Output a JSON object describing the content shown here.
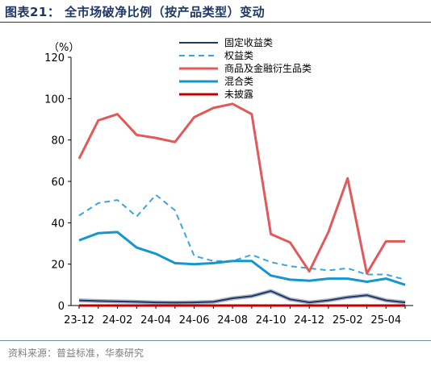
{
  "figure": {
    "title": "图表21： 全市场破净比例（按产品类型）变动",
    "source": "资料来源：普益标准，华泰研究"
  },
  "chart_data": {
    "type": "line",
    "ylabel": "（%）",
    "ylim": [
      0,
      120
    ],
    "yticks": [
      0,
      20,
      40,
      60,
      80,
      100,
      120
    ],
    "categories": [
      "23-12",
      "24-01",
      "24-02",
      "24-03",
      "24-04",
      "24-05",
      "24-06",
      "24-07",
      "24-08",
      "24-09",
      "24-10",
      "24-11",
      "24-12",
      "25-01",
      "25-02",
      "25-03",
      "25-04",
      "25-05"
    ],
    "xtick_labels": [
      "23-12",
      "24-02",
      "24-04",
      "24-06",
      "24-08",
      "24-10",
      "24-12",
      "25-02",
      "25-04"
    ],
    "legend_position": "top-right",
    "grid": false,
    "series": [
      {
        "name": "固定收益类",
        "color": "#1f3864",
        "style": "solid",
        "width": 2,
        "values": [
          2.5,
          2.2,
          2,
          1.8,
          1.5,
          1.4,
          1.5,
          1.8,
          3.5,
          4.5,
          7,
          3,
          1.5,
          2.5,
          4,
          5,
          2.5,
          1.5
        ]
      },
      {
        "name": "权益类",
        "color": "#3aa6dd",
        "style": "dashed",
        "width": 2,
        "values": [
          43.5,
          49.5,
          51,
          43,
          53.5,
          46,
          24,
          21.5,
          21.5,
          24.5,
          21,
          19,
          18,
          17,
          18,
          15,
          15,
          12.5
        ]
      },
      {
        "name": "商品及金融衍生品类",
        "color": "#e05a5a",
        "style": "solid",
        "width": 3,
        "values": [
          71,
          89.5,
          92.5,
          82.5,
          81,
          79,
          91,
          95.5,
          97.5,
          92.5,
          34.5,
          30.5,
          16.5,
          35.5,
          61.5,
          15.5,
          31,
          31
        ]
      },
      {
        "name": "混合类",
        "color": "#1796cd",
        "style": "solid",
        "width": 3,
        "values": [
          31.5,
          35,
          35.5,
          28,
          25,
          20.5,
          20,
          20.5,
          21.5,
          21.5,
          14.5,
          12.5,
          12,
          13,
          13,
          11.5,
          13,
          10
        ]
      },
      {
        "name": "未披露",
        "color": "#c00000",
        "style": "solid",
        "width": 3,
        "values": [
          0,
          0,
          0,
          0,
          0,
          0,
          0,
          0,
          0,
          0,
          0,
          0,
          0,
          0,
          0,
          0,
          0,
          0
        ]
      }
    ]
  }
}
